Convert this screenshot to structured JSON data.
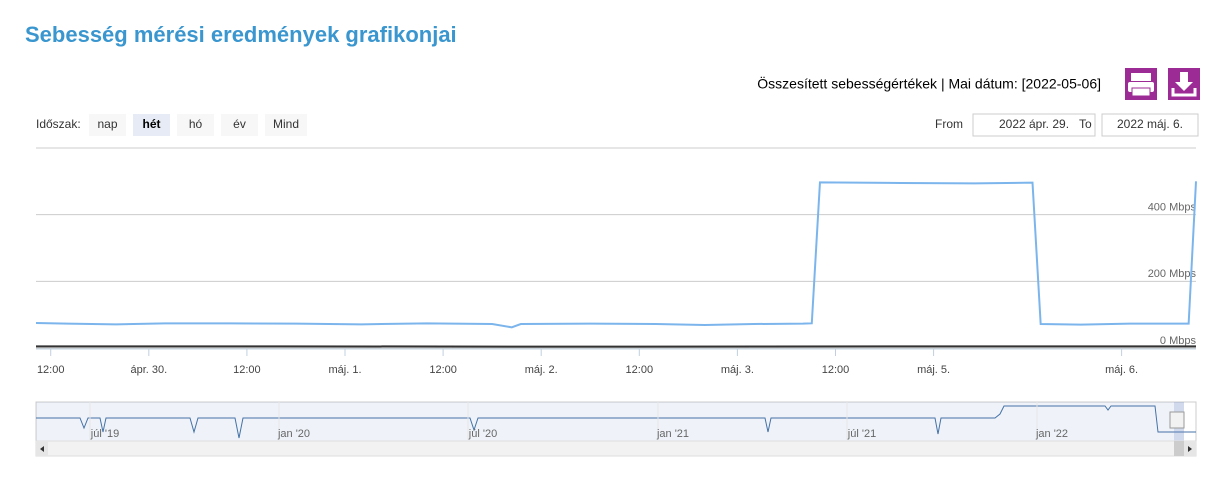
{
  "header": {
    "title": "Sebesség mérési eredmények grafikonjai",
    "info": "Összesített sebességértékek | Mai dátum: [2022-05-06]"
  },
  "range_selector": {
    "label": "Időszak:",
    "buttons": [
      "nap",
      "hét",
      "hó",
      "év",
      "Mind"
    ],
    "selected": 1,
    "from_label": "From",
    "from": "2022 ápr. 29.",
    "to_label": "To",
    "to": "2022 máj. 6."
  },
  "chart_data": {
    "type": "line",
    "xlim": [
      10.2,
      152.1
    ],
    "xticks": [
      {
        "value": 12,
        "label": "12:00"
      },
      {
        "value": 24,
        "label": "ápr. 30."
      },
      {
        "value": 36,
        "label": "12:00"
      },
      {
        "value": 48,
        "label": "máj. 1."
      },
      {
        "value": 60,
        "label": "12:00"
      },
      {
        "value": 72,
        "label": "máj. 2."
      },
      {
        "value": 84,
        "label": "12:00"
      },
      {
        "value": 96,
        "label": "máj. 3."
      },
      {
        "value": 108,
        "label": "12:00"
      },
      {
        "value": 120,
        "label": "máj. 5."
      },
      {
        "value": 143,
        "label": "máj. 6."
      }
    ],
    "ylim": [
      0,
      600
    ],
    "yticks": [
      {
        "value": 0,
        "label": "0 Mbps"
      },
      {
        "value": 200,
        "label": "200 Mbps"
      },
      {
        "value": 400,
        "label": "400 Mbps"
      }
    ],
    "grid": true,
    "series": [
      {
        "color": "#7cb5ec",
        "x": [
          10.2,
          14,
          20,
          26,
          34,
          42,
          50,
          58,
          66,
          68.4,
          69.5,
          78,
          86,
          92,
          98,
          104,
          105.1,
          106.1,
          116,
          125,
          132.1,
          133.1,
          138,
          144,
          151.2,
          152.1
        ],
        "values": [
          75,
          73,
          71,
          74,
          74,
          73,
          71,
          74,
          72,
          62,
          72,
          73,
          72,
          69,
          72,
          73,
          74,
          497,
          495,
          494,
          496,
          72,
          70,
          73,
          73,
          500
        ]
      },
      {
        "color": "#333333",
        "x": [
          10.2,
          40,
          80,
          120,
          152.1
        ],
        "values": [
          5,
          5,
          4,
          5,
          5
        ]
      }
    ]
  },
  "navigator": {
    "labels": [
      "júl '19",
      "jan '20",
      "júl '20",
      "jan '21",
      "júl '21",
      "jan '22"
    ]
  }
}
